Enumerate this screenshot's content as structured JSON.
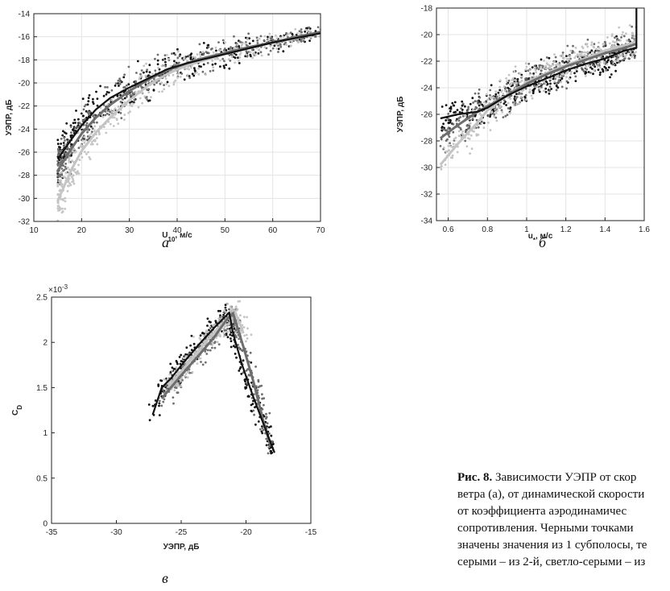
{
  "chart_data": [
    {
      "id": "a",
      "type": "scatter",
      "letter": "а",
      "xlabel": "U",
      "xlabel_sub": "10",
      "xlabel_unit": ", м/с",
      "ylabel": "УЭПР, дБ",
      "xlim": [
        10,
        70
      ],
      "ylim": [
        -32,
        -14
      ],
      "xticks": [
        10,
        20,
        30,
        40,
        50,
        60,
        70
      ],
      "yticks": [
        -32,
        -30,
        -28,
        -26,
        -24,
        -22,
        -20,
        -18,
        -16,
        -14
      ],
      "grid": true,
      "series": [
        {
          "color": "#111111",
          "x": [
            15,
            18,
            20,
            23,
            26,
            30,
            34,
            38,
            42,
            46,
            50,
            55,
            60,
            65,
            70
          ],
          "y": [
            -26.6,
            -24.8,
            -23.7,
            -22.3,
            -21.3,
            -20.4,
            -19.6,
            -18.8,
            -18.3,
            -17.9,
            -17.5,
            -17.0,
            -16.5,
            -16.1,
            -15.7
          ]
        },
        {
          "color": "#6e6e6e",
          "x": [
            15,
            18,
            20,
            23,
            26,
            30,
            34,
            38,
            42,
            46,
            50,
            55,
            60,
            65,
            70
          ],
          "y": [
            -27.6,
            -25.6,
            -24.4,
            -23.0,
            -21.9,
            -20.7,
            -19.7,
            -18.9,
            -18.3,
            -17.8,
            -17.4,
            -16.9,
            -16.5,
            -16.0,
            -15.6
          ]
        },
        {
          "color": "#c4c4c4",
          "x": [
            15,
            18,
            20,
            23,
            26,
            30,
            34,
            38,
            42,
            46,
            50,
            55,
            60,
            65,
            70
          ],
          "y": [
            -30.2,
            -27.4,
            -25.9,
            -24.3,
            -23.0,
            -21.5,
            -20.2,
            -19.2,
            -18.5,
            -18.0,
            -17.5,
            -17.0,
            -16.5,
            -16.1,
            -15.6
          ]
        }
      ]
    },
    {
      "id": "b",
      "type": "scatter",
      "letter": "б",
      "xlabel": "u",
      "xlabel_sub": "*",
      "xlabel_unit": ", м/с",
      "ylabel": "УЭПР, дБ",
      "xlim": [
        0.54,
        1.6
      ],
      "ylim": [
        -34,
        -18
      ],
      "xticks": [
        0.6,
        0.8,
        1,
        1.2,
        1.4,
        1.6
      ],
      "yticks": [
        -34,
        -32,
        -30,
        -28,
        -26,
        -24,
        -22,
        -20,
        -18
      ],
      "grid": true,
      "series": [
        {
          "color": "#111111",
          "x": [
            0.56,
            0.65,
            0.75,
            0.8,
            0.9,
            1.0,
            1.1,
            1.2,
            1.3,
            1.4,
            1.5,
            1.56,
            1.56
          ],
          "y": [
            -26.3,
            -26.0,
            -25.8,
            -25.5,
            -24.6,
            -23.9,
            -23.3,
            -22.7,
            -22.2,
            -21.8,
            -21.2,
            -21.0,
            -18.0
          ]
        },
        {
          "color": "#6e6e6e",
          "x": [
            0.56,
            0.65,
            0.75,
            0.8,
            0.9,
            1.0,
            1.1,
            1.2,
            1.3,
            1.4,
            1.5,
            1.56
          ],
          "y": [
            -27.8,
            -26.8,
            -25.8,
            -25.4,
            -24.6,
            -23.7,
            -23.0,
            -22.4,
            -21.9,
            -21.4,
            -21.0,
            -20.7
          ]
        },
        {
          "color": "#c4c4c4",
          "x": [
            0.56,
            0.65,
            0.75,
            0.8,
            0.9,
            1.0,
            1.1,
            1.2,
            1.3,
            1.4,
            1.5,
            1.56
          ],
          "y": [
            -29.8,
            -28.2,
            -26.6,
            -25.7,
            -24.6,
            -23.6,
            -22.9,
            -22.3,
            -21.8,
            -21.2,
            -20.8,
            -20.5
          ]
        }
      ]
    },
    {
      "id": "c",
      "type": "scatter",
      "letter": "в",
      "xlabel": "УЭПР, дБ",
      "ylabel": "C",
      "ylabel_sub": "D",
      "y_exponent": "×10",
      "y_exponent_power": "-3",
      "xlim": [
        -35,
        -15
      ],
      "ylim": [
        0,
        2.5
      ],
      "xticks": [
        -35,
        -30,
        -25,
        -20,
        -15
      ],
      "yticks": [
        0,
        0.5,
        1,
        1.5,
        2,
        2.5
      ],
      "grid": false,
      "series": [
        {
          "color": "#111111",
          "x": [
            -27.2,
            -26.5,
            -25.8,
            -24.8,
            -23.6,
            -22.4,
            -21.3,
            -21.0,
            -20.3,
            -19.5,
            -18.6,
            -17.8
          ],
          "y": [
            1.2,
            1.5,
            1.6,
            1.78,
            1.98,
            2.17,
            2.33,
            2.1,
            1.75,
            1.42,
            1.08,
            0.78
          ]
        },
        {
          "color": "#6e6e6e",
          "x": [
            -26.5,
            -25.5,
            -24.5,
            -23.5,
            -22.5,
            -21.5,
            -21.0,
            -20.2,
            -19.4,
            -18.7,
            -18.1
          ],
          "y": [
            1.38,
            1.55,
            1.72,
            1.88,
            2.05,
            2.25,
            2.32,
            1.95,
            1.55,
            1.15,
            0.85
          ]
        },
        {
          "color": "#c4c4c4",
          "x": [
            -26.0,
            -25.0,
            -24.0,
            -23.0,
            -22.0,
            -21.2,
            -20.8,
            -20.2
          ],
          "y": [
            1.5,
            1.68,
            1.85,
            2.02,
            2.18,
            2.3,
            2.32,
            2.1
          ]
        }
      ]
    }
  ],
  "caption": {
    "lines": [
      {
        "bold": "Рис. 8.",
        "rest": " Зависимости УЭПР от скор"
      },
      {
        "bold": "",
        "rest": "ветра (а), от динамической скорости"
      },
      {
        "bold": "",
        "rest": "от   коэффициента   аэродинамичес"
      },
      {
        "bold": "",
        "rest": "сопротивления. Черными точками"
      },
      {
        "bold": "",
        "rest": "значены значения из 1 субполосы, те"
      },
      {
        "bold": "",
        "rest": "серыми – из 2-й, светло-серыми – из"
      }
    ]
  }
}
